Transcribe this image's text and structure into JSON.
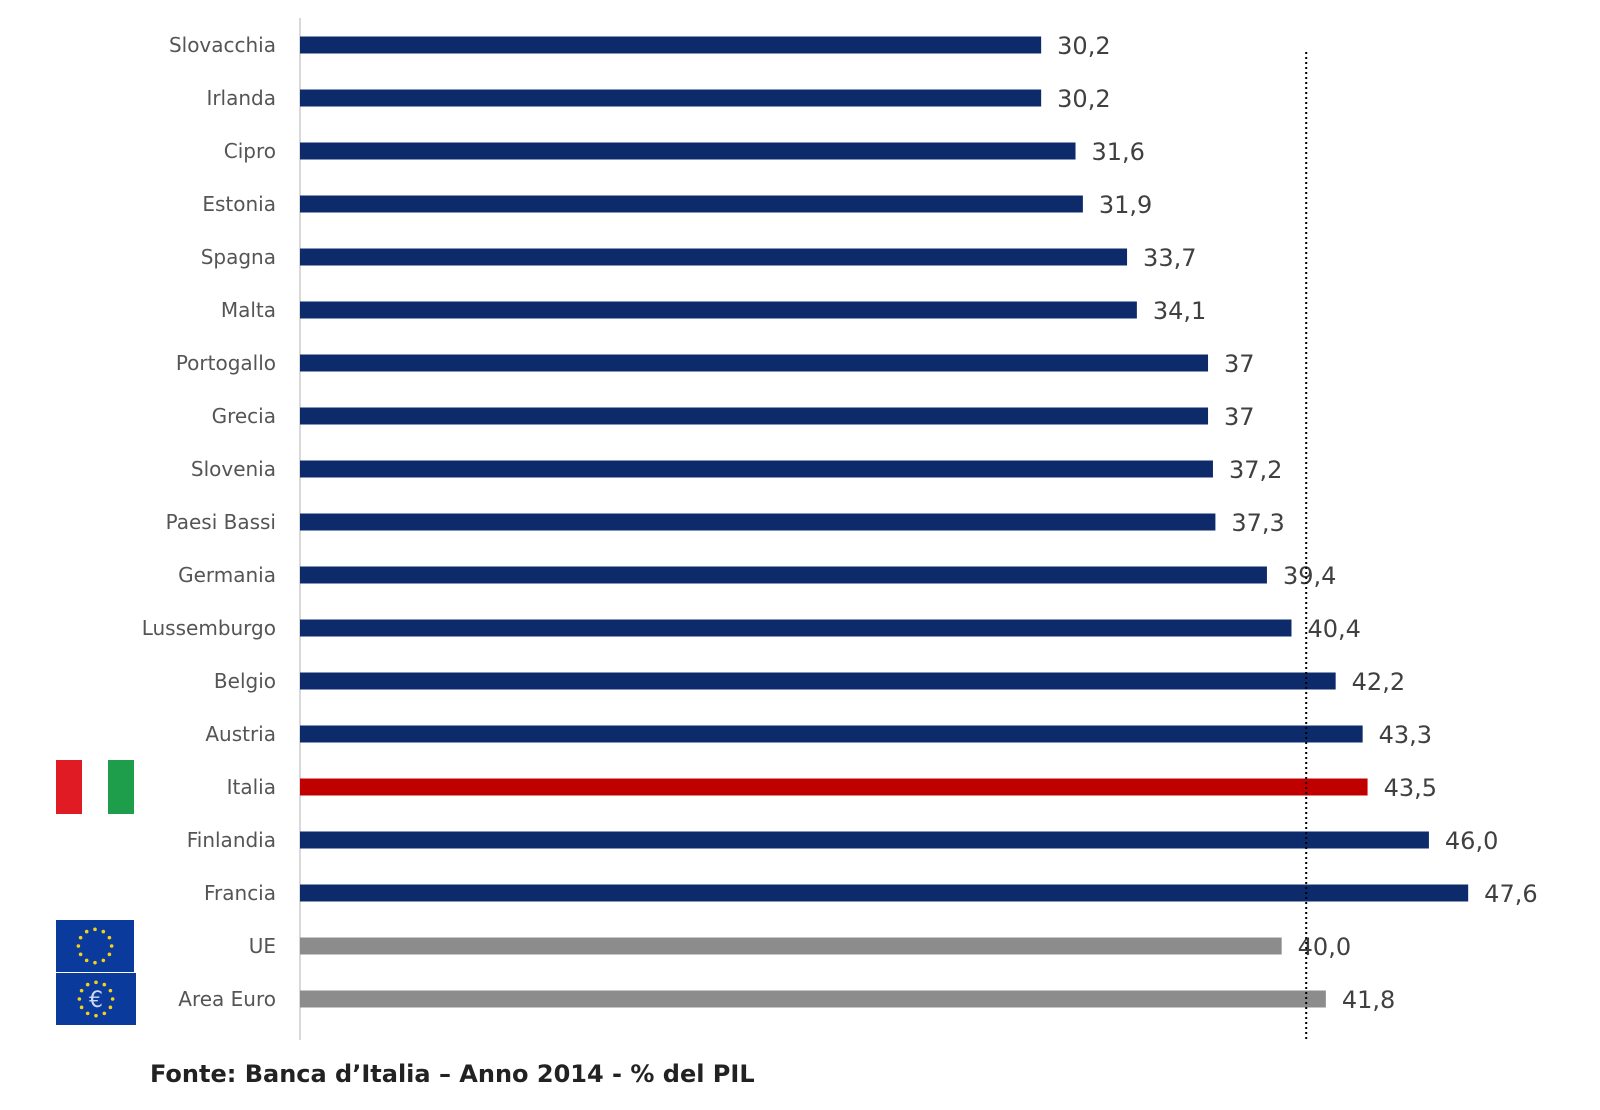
{
  "chart_data": {
    "type": "bar",
    "orientation": "horizontal",
    "categories": [
      "Slovacchia",
      "Irlanda",
      "Cipro",
      "Estonia",
      "Spagna",
      "Malta",
      "Portogallo",
      "Grecia",
      "Slovenia",
      "Paesi Bassi",
      "Germania",
      "Lussemburgo",
      "Belgio",
      "Austria",
      "Italia",
      "Finlandia",
      "Francia",
      "UE",
      "Area Euro"
    ],
    "values": [
      30.2,
      30.2,
      31.6,
      31.9,
      33.7,
      34.1,
      37,
      37,
      37.2,
      37.3,
      39.4,
      40.4,
      42.2,
      43.3,
      43.5,
      46.0,
      47.6,
      40.0,
      41.8
    ],
    "value_labels": [
      "30,2",
      "30,2",
      "31,6",
      "31,9",
      "33,7",
      "34,1",
      "37",
      "37",
      "37,2",
      "37,3",
      "39,4",
      "40,4",
      "42,2",
      "43,3",
      "43,5",
      "46,0",
      "47,6",
      "40,0",
      "41,8"
    ],
    "bar_colors": [
      "#0d2a6b",
      "#0d2a6b",
      "#0d2a6b",
      "#0d2a6b",
      "#0d2a6b",
      "#0d2a6b",
      "#0d2a6b",
      "#0d2a6b",
      "#0d2a6b",
      "#0d2a6b",
      "#0d2a6b",
      "#0d2a6b",
      "#0d2a6b",
      "#0d2a6b",
      "#c00000",
      "#0d2a6b",
      "#0d2a6b",
      "#8c8c8c",
      "#8c8c8c"
    ],
    "reference_line": 41.0,
    "xlim": [
      0,
      48
    ],
    "grid": false,
    "flags": [
      {
        "category": "Italia",
        "icon": "italy-flag-icon"
      },
      {
        "category": "UE",
        "icon": "eu-flag-icon"
      },
      {
        "category": "Area Euro",
        "icon": "euro-area-flag-icon"
      }
    ]
  },
  "source_note": "Fonte: Banca d’Italia – Anno 2014 - % del PIL",
  "colors": {
    "country_bar": "#0d2a6b",
    "italy_bar": "#c00000",
    "aggregate_bar": "#8c8c8c",
    "italy_green": "#1e9e4a",
    "italy_red": "#e01b24",
    "eu_blue": "#0a3a9c",
    "eu_star": "#f7d117"
  }
}
